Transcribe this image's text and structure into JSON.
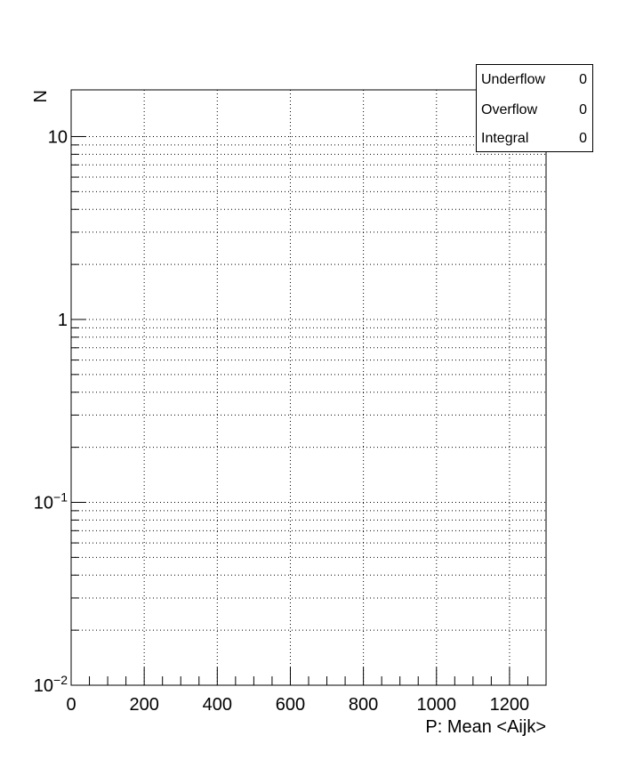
{
  "chart_data": {
    "type": "histogram",
    "title": "",
    "xlabel": "P: Mean <Aijk>",
    "ylabel": "N",
    "xlim": [
      0,
      1300
    ],
    "ylim": [
      0.01,
      18
    ],
    "yscale": "log",
    "grid": true,
    "x_ticks": [
      {
        "value": 0,
        "label": "0"
      },
      {
        "value": 200,
        "label": "200"
      },
      {
        "value": 400,
        "label": "400"
      },
      {
        "value": 600,
        "label": "600"
      },
      {
        "value": 800,
        "label": "800"
      },
      {
        "value": 1000,
        "label": "1000"
      },
      {
        "value": 1200,
        "label": "1200"
      }
    ],
    "y_ticks": [
      {
        "value": 0.01,
        "base": "10",
        "exp": "−2"
      },
      {
        "value": 0.1,
        "base": "10",
        "exp": "−1"
      },
      {
        "value": 1,
        "base": "1",
        "exp": ""
      },
      {
        "value": 10,
        "base": "10",
        "exp": ""
      }
    ],
    "series": [],
    "stats": [
      {
        "label": "Underflow",
        "value": "0"
      },
      {
        "label": "Overflow",
        "value": "0"
      },
      {
        "label": "Integral",
        "value": "0"
      }
    ]
  }
}
